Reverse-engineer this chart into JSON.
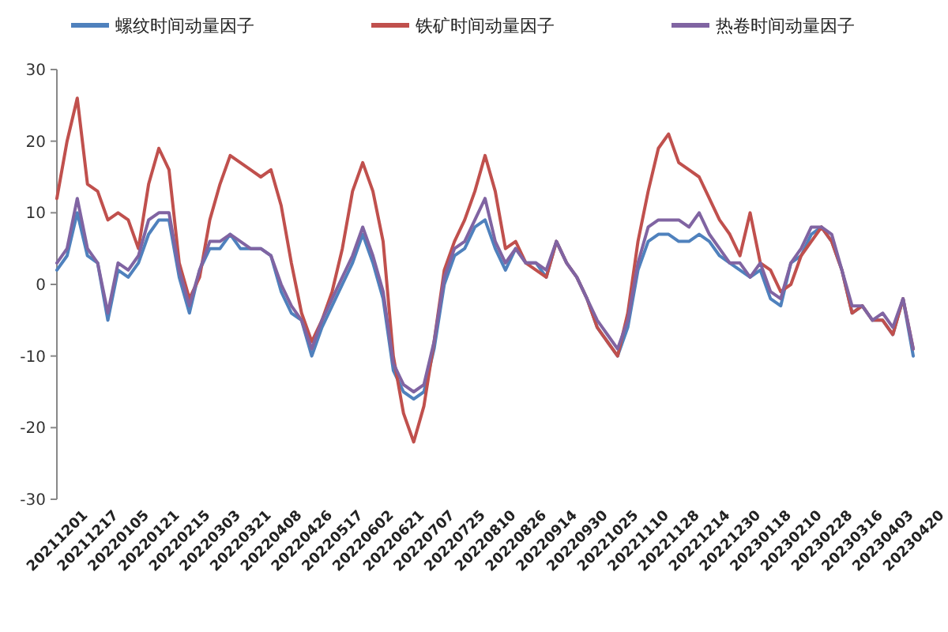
{
  "chart_data": {
    "type": "line",
    "categories": [
      "20211201",
      null,
      null,
      "20211217",
      null,
      null,
      "20220105",
      null,
      null,
      "20220121",
      null,
      null,
      "20220215",
      null,
      null,
      "20220303",
      null,
      null,
      "20220321",
      null,
      null,
      "20220408",
      null,
      null,
      "20220426",
      null,
      null,
      "20220517",
      null,
      null,
      "20220602",
      null,
      null,
      "20220621",
      null,
      null,
      "20220707",
      null,
      null,
      "20220725",
      null,
      null,
      "20220810",
      null,
      null,
      "20220826",
      null,
      null,
      "20220914",
      null,
      null,
      "20220930",
      null,
      null,
      "20221025",
      null,
      null,
      "20221110",
      null,
      null,
      "20221128",
      null,
      null,
      "20221214",
      null,
      null,
      "20221230",
      null,
      null,
      "20230118",
      null,
      null,
      "20230210",
      null,
      null,
      "20230228",
      null,
      null,
      "20230316",
      null,
      null,
      "20230403",
      null,
      null,
      "20230420"
    ],
    "series": [
      {
        "name": "螺纹时间动量因子",
        "color": "#4f81bd",
        "values": [
          2,
          4,
          10,
          4,
          3,
          -5,
          2,
          1,
          3,
          7,
          9,
          9,
          1,
          -4,
          2,
          5,
          5,
          7,
          5,
          5,
          5,
          4,
          -1,
          -4,
          -5,
          -10,
          -6,
          -3,
          0,
          3,
          7,
          3,
          -2,
          -12,
          -15,
          -16,
          -15,
          -9,
          0,
          4,
          5,
          8,
          9,
          5,
          2,
          5,
          3,
          3,
          1,
          6,
          3,
          1,
          -2,
          -6,
          -8,
          -10,
          -6,
          2,
          6,
          7,
          7,
          6,
          6,
          7,
          6,
          4,
          3,
          2,
          1,
          2,
          -2,
          -3,
          3,
          4,
          7,
          8,
          6,
          2,
          -4,
          -3,
          -5,
          -5,
          -7,
          -2,
          -10
        ]
      },
      {
        "name": "铁矿时间动量因子",
        "color": "#c0504d",
        "values": [
          12,
          20,
          26,
          14,
          13,
          9,
          10,
          9,
          5,
          14,
          19,
          16,
          3,
          -2,
          1,
          9,
          14,
          18,
          17,
          16,
          15,
          16,
          11,
          3,
          -4,
          -8,
          -5,
          -1,
          5,
          13,
          17,
          13,
          6,
          -10,
          -18,
          -22,
          -17,
          -8,
          2,
          6,
          9,
          13,
          18,
          13,
          5,
          6,
          3,
          2,
          1,
          6,
          3,
          1,
          -2,
          -6,
          -8,
          -10,
          -4,
          6,
          13,
          19,
          21,
          17,
          16,
          15,
          12,
          9,
          7,
          4,
          10,
          3,
          2,
          -1,
          0,
          4,
          6,
          8,
          6,
          2,
          -4,
          -3,
          -5,
          -5,
          -7,
          -2,
          -9
        ]
      },
      {
        "name": "热卷时间动量因子",
        "color": "#8064a2",
        "values": [
          3,
          5,
          12,
          5,
          3,
          -4,
          3,
          2,
          4,
          9,
          10,
          10,
          2,
          -3,
          2,
          6,
          6,
          7,
          6,
          5,
          5,
          4,
          0,
          -3,
          -5,
          -9,
          -5,
          -2,
          1,
          4,
          8,
          4,
          -1,
          -11,
          -14,
          -15,
          -14,
          -8,
          1,
          5,
          6,
          9,
          12,
          6,
          3,
          5,
          3,
          3,
          2,
          6,
          3,
          1,
          -2,
          -5,
          -7,
          -9,
          -5,
          3,
          8,
          9,
          9,
          9,
          8,
          10,
          7,
          5,
          3,
          3,
          1,
          3,
          -1,
          -2,
          3,
          5,
          8,
          8,
          7,
          2,
          -3,
          -3,
          -5,
          -4,
          -6,
          -2,
          -9
        ]
      }
    ],
    "ylim": [
      -30,
      30
    ],
    "yticks": [
      -30,
      -20,
      -10,
      0,
      10,
      20,
      30
    ],
    "grid": false,
    "legend": "top",
    "marker": "none",
    "line_style": "solid"
  }
}
